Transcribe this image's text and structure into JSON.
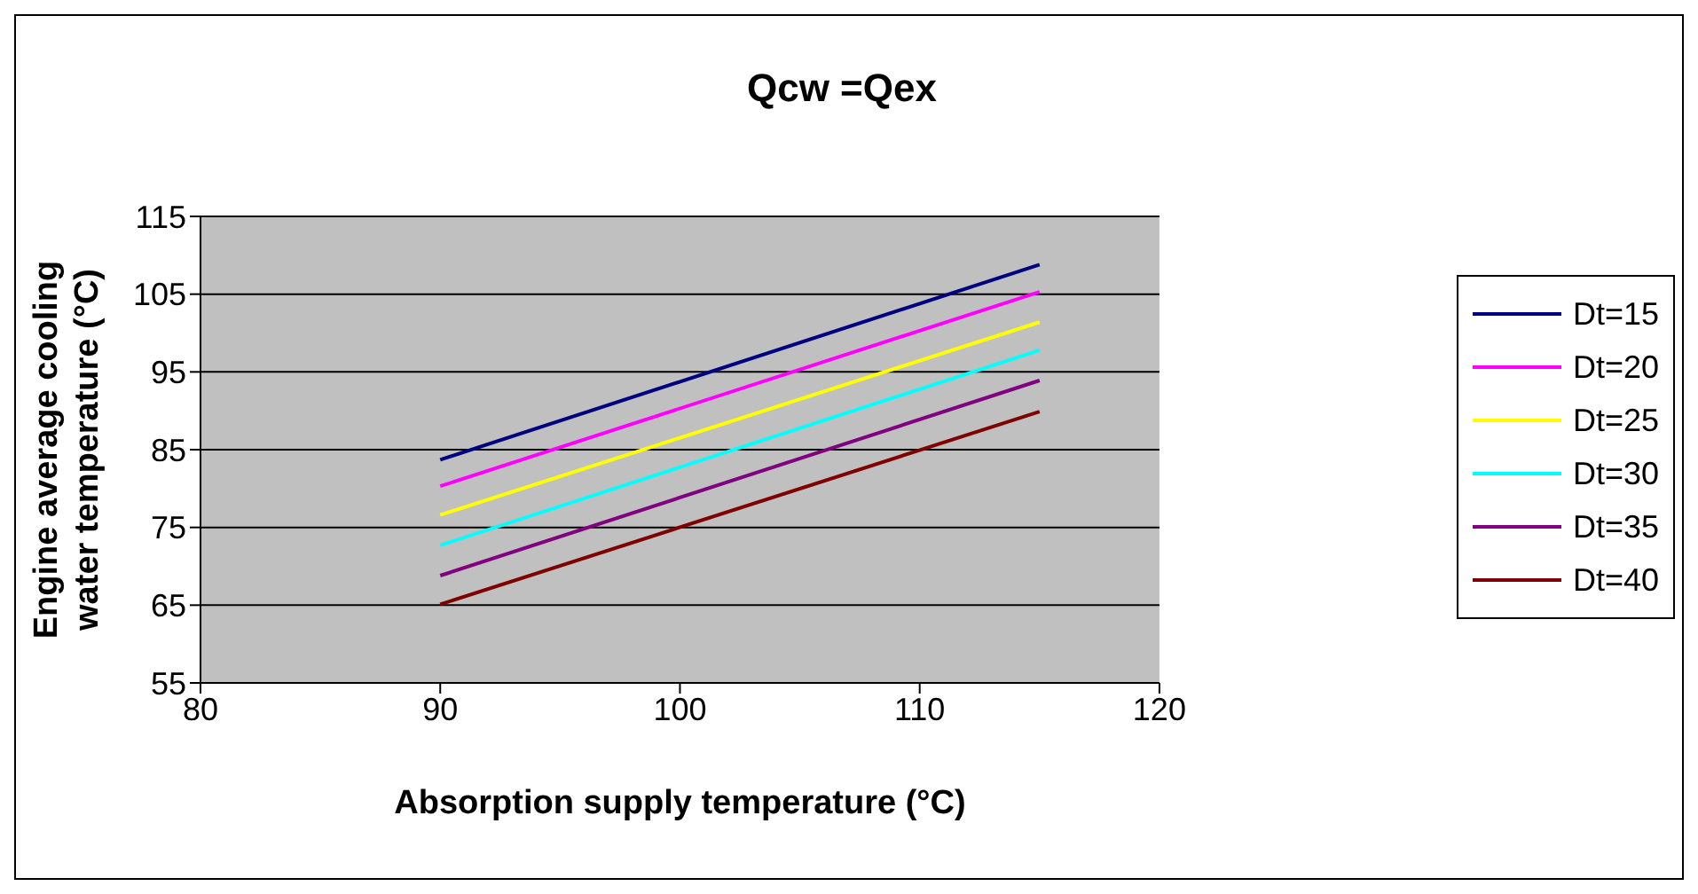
{
  "chart_data": {
    "type": "line",
    "title": "Qcw =Qex",
    "xlabel": "Absorption supply temperature (°C)",
    "ylabel": "Engine average cooling\nwater temperature (°C)",
    "x": [
      90,
      115
    ],
    "series": [
      {
        "name": "Dt=15",
        "color": "#000080",
        "values": [
          83.7,
          108.8
        ]
      },
      {
        "name": "Dt=20",
        "color": "#ff00ff",
        "values": [
          80.3,
          105.3
        ]
      },
      {
        "name": "Dt=25",
        "color": "#ffff00",
        "values": [
          76.6,
          101.4
        ]
      },
      {
        "name": "Dt=30",
        "color": "#00ffff",
        "values": [
          72.7,
          97.8
        ]
      },
      {
        "name": "Dt=35",
        "color": "#800080",
        "values": [
          68.8,
          93.9
        ]
      },
      {
        "name": "Dt=40",
        "color": "#800000",
        "values": [
          65.1,
          89.9
        ]
      }
    ],
    "xlim": [
      80,
      120
    ],
    "xticks": [
      80,
      90,
      100,
      110,
      120
    ],
    "ylim": [
      55,
      115
    ],
    "yticks": [
      55,
      65,
      75,
      85,
      95,
      105,
      115
    ],
    "grid": "y",
    "legend": "right",
    "marker": "none",
    "line_style": "solid"
  }
}
